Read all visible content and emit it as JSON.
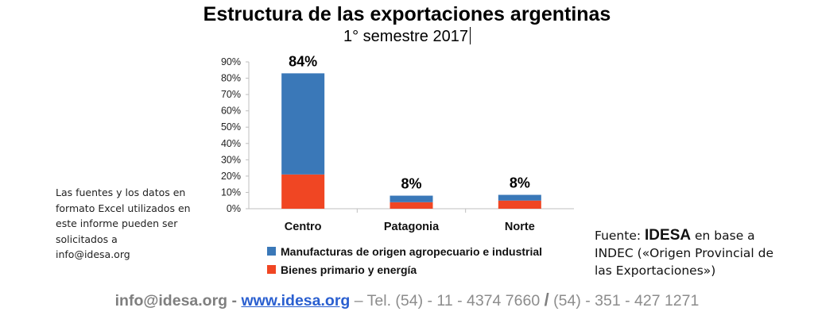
{
  "header": {
    "title": "Estructura de las exportaciones argentinas",
    "subtitle": "1° semestre 2017"
  },
  "chart_data": {
    "type": "bar",
    "stacked": true,
    "categories": [
      "Centro",
      "Patagonia",
      "Norte"
    ],
    "series": [
      {
        "name": "Bienes primario y energía",
        "values": [
          21,
          4,
          5
        ],
        "color": "#f04623"
      },
      {
        "name": "Manufacturas de origen agropecuario e industrial",
        "values": [
          62,
          4,
          3.5
        ],
        "color": "#3a78b8"
      }
    ],
    "totals_labels": [
      "84%",
      "8%",
      "8%"
    ],
    "ylim": [
      0,
      90
    ],
    "yticks": [
      "0%",
      "10%",
      "20%",
      "30%",
      "40%",
      "50%",
      "60%",
      "70%",
      "80%",
      "90%"
    ],
    "legend_order": [
      1,
      0
    ],
    "legend_position": "bottom",
    "grid": false
  },
  "side_note": "Las fuentes y los datos en formato Excel utilizados en este informe pueden ser solicitados a info@idesa.org",
  "source": {
    "prefix": "Fuente: ",
    "brand": "IDESA",
    "rest": " en base a INDEC («Origen Provincial de las Exportaciones»)"
  },
  "footer": {
    "email": "info@idesa.org",
    "dash": " - ",
    "web": "www.idesa.org",
    "tel": " – Tel. (54) - 11 - 4374 7660 ",
    "sep": "/",
    "tel2": " (54) - 351 - 427 1271"
  }
}
